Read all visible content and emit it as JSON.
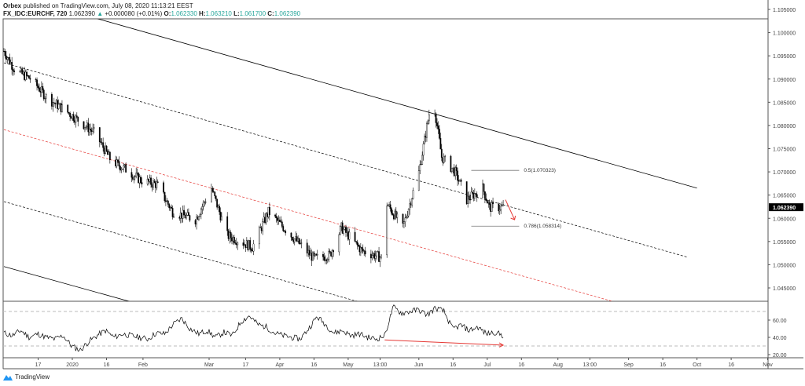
{
  "header": {
    "publisher": "Orbex",
    "published_text": "published on TradingView.com, July 08, 2020 11:13:21 EEST",
    "symbol": "FX_IDC:EURCHF, 720",
    "last": "1.062390",
    "change": "+0.000080 (+0.01%)",
    "o_label": "O:",
    "o": "1.062330",
    "h_label": "H:",
    "h": "1.063210",
    "l_label": "L:",
    "l": "1.061700",
    "c_label": "C:",
    "c": "1.062390",
    "up_color": "#26a69a"
  },
  "logo": {
    "text": "TradingView",
    "color": "#2196f3"
  },
  "chart_data": {
    "type": "candlestick",
    "title": "FX_IDC:EURCHF, 720",
    "price_ticks": [
      "1.105000",
      "1.100000",
      "1.095000",
      "1.090000",
      "1.085000",
      "1.080000",
      "1.075000",
      "1.070000",
      "1.065000",
      "1.060000",
      "1.055000",
      "1.050000",
      "1.045000"
    ],
    "ylim": [
      1.0412,
      1.1071
    ],
    "last_price_label": "1.062390",
    "time_ticks": [
      {
        "label": "17",
        "date": "2019-12-17"
      },
      {
        "label": "2020",
        "date": "2020-01-01"
      },
      {
        "label": "16",
        "date": "2020-01-16"
      },
      {
        "label": "Feb",
        "date": "2020-02-01"
      },
      {
        "label": "Mar",
        "date": "2020-03-01"
      },
      {
        "label": "17",
        "date": "2020-03-17"
      },
      {
        "label": "Apr",
        "date": "2020-04-01"
      },
      {
        "label": "16",
        "date": "2020-04-16"
      },
      {
        "label": "May",
        "date": "2020-05-01"
      },
      {
        "label": "13:00",
        "date": "2020-05-15"
      },
      {
        "label": "Jun",
        "date": "2020-06-01"
      },
      {
        "label": "16",
        "date": "2020-06-16"
      },
      {
        "label": "Jul",
        "date": "2020-07-01"
      },
      {
        "label": "16",
        "date": "2020-07-16"
      },
      {
        "label": "Aug",
        "date": "2020-08-01"
      },
      {
        "label": "13:00",
        "date": "2020-08-15"
      },
      {
        "label": "Sep",
        "date": "2020-09-01"
      },
      {
        "label": "16",
        "date": "2020-09-16"
      },
      {
        "label": "Oct",
        "date": "2020-10-01"
      },
      {
        "label": "16",
        "date": "2020-10-16"
      },
      {
        "label": "Nov",
        "date": "2020-11-01"
      }
    ],
    "price_path": [
      [
        "2019-12-02",
        1.096
      ],
      [
        "2019-12-07",
        1.0918
      ],
      [
        "2019-12-14",
        1.09
      ],
      [
        "2019-12-21",
        1.0859
      ],
      [
        "2019-12-31",
        1.0825
      ],
      [
        "2020-01-11",
        1.0783
      ],
      [
        "2020-01-18",
        1.0724
      ],
      [
        "2020-01-24",
        1.0707
      ],
      [
        "2020-01-31",
        1.0682
      ],
      [
        "2020-02-07",
        1.0673
      ],
      [
        "2020-02-14",
        1.0614
      ],
      [
        "2020-02-24",
        1.0597
      ],
      [
        "2020-03-02",
        1.0665
      ],
      [
        "2020-03-09",
        1.0563
      ],
      [
        "2020-03-20",
        1.0538
      ],
      [
        "2020-03-27",
        1.0614
      ],
      [
        "2020-04-06",
        1.0563
      ],
      [
        "2020-04-16",
        1.0513
      ],
      [
        "2020-04-23",
        1.0521
      ],
      [
        "2020-04-28",
        1.058
      ],
      [
        "2020-05-07",
        1.053
      ],
      [
        "2020-05-17",
        1.0513
      ],
      [
        "2020-05-18",
        1.0631
      ],
      [
        "2020-05-25",
        1.058
      ],
      [
        "2020-06-01",
        1.0699
      ],
      [
        "2020-06-07",
        1.0867
      ],
      [
        "2020-06-11",
        1.0732
      ],
      [
        "2020-06-17",
        1.0699
      ],
      [
        "2020-06-22",
        1.064
      ],
      [
        "2020-06-29",
        1.0665
      ],
      [
        "2020-07-02",
        1.0623
      ],
      [
        "2020-07-08",
        1.06239
      ]
    ],
    "trendlines": [
      {
        "style": "solid",
        "color": "#000000",
        "from": [
          "2020-01-12",
          1.103
        ],
        "to": [
          "2020-10-01",
          1.0665
        ]
      },
      {
        "style": "solid",
        "color": "#000000",
        "from": [
          "2019-12-02",
          1.0496
        ],
        "to": [
          "2020-01-26",
          1.0421
        ]
      },
      {
        "style": "dashed",
        "color": "#000000",
        "from": [
          "2019-12-02",
          1.0935
        ],
        "to": [
          "2020-09-27",
          1.0516
        ]
      },
      {
        "style": "dashed",
        "color": "#e53935",
        "from": [
          "2019-12-02",
          1.0791
        ],
        "to": [
          "2020-08-25",
          1.0421
        ]
      },
      {
        "style": "dashed",
        "color": "#000000",
        "from": [
          "2019-12-02",
          1.0636
        ],
        "to": [
          "2020-05-05",
          1.0421
        ]
      }
    ],
    "fib_levels": [
      {
        "label": "0.5(1.070323)",
        "price": 1.070323,
        "from": "2020-06-24",
        "to": "2020-07-15"
      },
      {
        "label": "0.786(1.058314)",
        "price": 1.058314,
        "from": "2020-06-24",
        "to": "2020-07-15"
      }
    ],
    "price_arrow": {
      "color": "#e53935",
      "from": [
        "2020-07-09",
        1.064
      ],
      "to": [
        "2020-07-13",
        1.0597
      ]
    },
    "oscillator": {
      "ticks": [
        "60.00",
        "40.00",
        "20.00"
      ],
      "ylim": [
        19,
        83
      ],
      "levels": [
        70,
        30
      ],
      "start": "2019-12-02",
      "end": "2020-07-08",
      "values": [
        45,
        42,
        48,
        40,
        44,
        40,
        38,
        42,
        30,
        25,
        35,
        42,
        48,
        40,
        44,
        42,
        40,
        38,
        45,
        44,
        55,
        62,
        50,
        44,
        48,
        40,
        46,
        42,
        58,
        65,
        55,
        52,
        45,
        42,
        40,
        38,
        50,
        64,
        55,
        45,
        48,
        42,
        44,
        40,
        38,
        42,
        75,
        68,
        70,
        72,
        66,
        74,
        70,
        50,
        54,
        48,
        52,
        44,
        46,
        42
      ],
      "arrow": {
        "color": "#e53935",
        "from": [
          "2020-05-17",
          37
        ],
        "to": [
          "2020-07-08",
          31
        ]
      }
    }
  }
}
